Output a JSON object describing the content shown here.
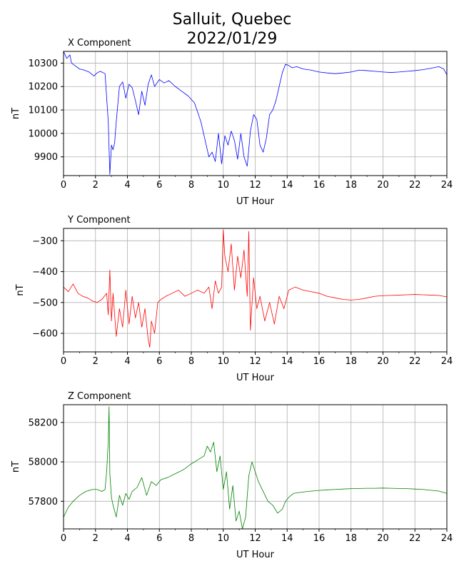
{
  "figure": {
    "title_line1": "Salluit, Quebec",
    "title_line2": "2022/01/29"
  },
  "chart_data": [
    {
      "type": "line",
      "title": "X Component",
      "xlabel": "UT Hour",
      "ylabel": "nT",
      "color": "#0000ff",
      "xlim": [
        0,
        24
      ],
      "ylim": [
        9820,
        10350
      ],
      "xticks": [
        "0",
        "2",
        "4",
        "6",
        "8",
        "10",
        "12",
        "14",
        "16",
        "18",
        "20",
        "22",
        "24"
      ],
      "yticks": [
        "9900",
        "10000",
        "10100",
        "10200",
        "10300"
      ],
      "grid": true,
      "x": [
        0,
        0.2,
        0.4,
        0.5,
        0.7,
        1,
        1.3,
        1.6,
        1.9,
        2.1,
        2.3,
        2.6,
        2.8,
        2.9,
        3,
        3.1,
        3.2,
        3.3,
        3.5,
        3.7,
        3.9,
        4.1,
        4.3,
        4.5,
        4.7,
        4.9,
        5.1,
        5.3,
        5.5,
        5.7,
        6,
        6.3,
        6.6,
        7,
        7.4,
        7.8,
        8.2,
        8.6,
        8.9,
        9.1,
        9.3,
        9.5,
        9.7,
        9.9,
        10.1,
        10.3,
        10.5,
        10.7,
        10.9,
        11.1,
        11.3,
        11.5,
        11.7,
        11.9,
        12.1,
        12.3,
        12.5,
        12.7,
        12.9,
        13.1,
        13.3,
        13.5,
        13.7,
        13.9,
        14.1,
        14.3,
        14.6,
        15,
        15.5,
        16,
        16.5,
        17,
        17.5,
        18,
        18.5,
        19,
        19.5,
        20,
        20.5,
        21,
        21.5,
        22,
        22.5,
        23,
        23.5,
        23.8,
        24
      ],
      "y": [
        10350,
        10320,
        10335,
        10300,
        10290,
        10275,
        10270,
        10262,
        10245,
        10258,
        10265,
        10255,
        10050,
        9825,
        9950,
        9930,
        9960,
        10050,
        10200,
        10220,
        10150,
        10210,
        10195,
        10140,
        10080,
        10180,
        10120,
        10210,
        10250,
        10200,
        10230,
        10215,
        10225,
        10200,
        10180,
        10160,
        10130,
        10050,
        9960,
        9900,
        9920,
        9880,
        10000,
        9870,
        9990,
        9950,
        10010,
        9970,
        9890,
        10000,
        9900,
        9860,
        10010,
        10080,
        10060,
        9950,
        9920,
        9980,
        10080,
        10100,
        10140,
        10200,
        10260,
        10295,
        10290,
        10280,
        10285,
        10275,
        10270,
        10262,
        10258,
        10255,
        10258,
        10262,
        10270,
        10268,
        10265,
        10262,
        10260,
        10262,
        10265,
        10268,
        10272,
        10278,
        10285,
        10275,
        10250
      ]
    },
    {
      "type": "line",
      "title": "Y Component",
      "xlabel": "UT Hour",
      "ylabel": "nT",
      "color": "#ff0000",
      "xlim": [
        0,
        24
      ],
      "ylim": [
        -660,
        -260
      ],
      "xticks": [
        "0",
        "2",
        "4",
        "6",
        "8",
        "10",
        "12",
        "14",
        "16",
        "18",
        "20",
        "22",
        "24"
      ],
      "yticks": [
        "−600",
        "−500",
        "−400",
        "−300"
      ],
      "grid": true,
      "x": [
        0,
        0.3,
        0.6,
        0.9,
        1.2,
        1.5,
        1.8,
        2.1,
        2.4,
        2.7,
        2.8,
        2.9,
        3,
        3.1,
        3.3,
        3.5,
        3.7,
        3.9,
        4.1,
        4.3,
        4.5,
        4.7,
        4.9,
        5.1,
        5.3,
        5.4,
        5.5,
        5.7,
        5.9,
        6.1,
        6.4,
        6.8,
        7.2,
        7.6,
        8,
        8.4,
        8.8,
        9.1,
        9.3,
        9.5,
        9.7,
        9.9,
        10,
        10.1,
        10.3,
        10.5,
        10.7,
        10.9,
        11.1,
        11.3,
        11.5,
        11.6,
        11.7,
        11.9,
        12.1,
        12.3,
        12.6,
        12.9,
        13.2,
        13.5,
        13.8,
        14.1,
        14.5,
        15,
        15.5,
        16,
        16.5,
        17,
        17.5,
        18,
        18.5,
        19,
        19.5,
        20,
        20.5,
        21,
        21.5,
        22,
        22.5,
        23,
        23.5,
        24
      ],
      "y": [
        -450,
        -465,
        -440,
        -470,
        -480,
        -485,
        -495,
        -500,
        -490,
        -470,
        -540,
        -395,
        -560,
        -470,
        -610,
        -520,
        -580,
        -460,
        -570,
        -480,
        -550,
        -500,
        -580,
        -520,
        -620,
        -645,
        -560,
        -600,
        -500,
        -490,
        -480,
        -470,
        -460,
        -480,
        -470,
        -460,
        -470,
        -450,
        -520,
        -430,
        -470,
        -450,
        -265,
        -350,
        -400,
        -310,
        -460,
        -350,
        -420,
        -330,
        -480,
        -270,
        -590,
        -420,
        -520,
        -480,
        -560,
        -500,
        -570,
        -480,
        -520,
        -460,
        -450,
        -460,
        -465,
        -470,
        -480,
        -485,
        -490,
        -492,
        -490,
        -485,
        -480,
        -478,
        -477,
        -476,
        -475,
        -474,
        -475,
        -476,
        -477,
        -482
      ]
    },
    {
      "type": "line",
      "title": "Z Component",
      "xlabel": "UT Hour",
      "ylabel": "nT",
      "color": "#008000",
      "xlim": [
        0,
        24
      ],
      "ylim": [
        57660,
        58290
      ],
      "xticks": [
        "0",
        "2",
        "4",
        "6",
        "8",
        "10",
        "12",
        "14",
        "16",
        "18",
        "20",
        "22",
        "24"
      ],
      "yticks": [
        "57800",
        "58000",
        "58200"
      ],
      "grid": true,
      "x": [
        0,
        0.3,
        0.6,
        1,
        1.4,
        1.8,
        2.1,
        2.4,
        2.6,
        2.7,
        2.8,
        2.85,
        2.9,
        3,
        3.1,
        3.3,
        3.5,
        3.7,
        3.9,
        4.1,
        4.3,
        4.6,
        4.9,
        5.2,
        5.5,
        5.8,
        6.1,
        6.5,
        7,
        7.5,
        8,
        8.4,
        8.8,
        9,
        9.2,
        9.4,
        9.6,
        9.8,
        10,
        10.2,
        10.4,
        10.6,
        10.8,
        11,
        11.2,
        11.4,
        11.6,
        11.8,
        12,
        12.2,
        12.5,
        12.8,
        13.1,
        13.4,
        13.7,
        13.9,
        14.1,
        14.4,
        14.8,
        15.3,
        16,
        16.5,
        17,
        17.5,
        18,
        18.5,
        19,
        19.5,
        20,
        20.5,
        21,
        21.5,
        22,
        22.5,
        23,
        23.5,
        24
      ],
      "y": [
        57720,
        57770,
        57800,
        57830,
        57850,
        57860,
        57860,
        57850,
        57860,
        57950,
        58100,
        58280,
        57940,
        57820,
        57780,
        57720,
        57830,
        57780,
        57840,
        57810,
        57850,
        57870,
        57920,
        57830,
        57900,
        57880,
        57910,
        57920,
        57940,
        57960,
        57990,
        58010,
        58030,
        58080,
        58050,
        58100,
        57950,
        58030,
        57860,
        57950,
        57760,
        57880,
        57700,
        57750,
        57660,
        57720,
        57930,
        58000,
        57950,
        57900,
        57850,
        57800,
        57780,
        57740,
        57760,
        57800,
        57820,
        57840,
        57845,
        57850,
        57855,
        57858,
        57860,
        57862,
        57864,
        57865,
        57866,
        57866,
        57867,
        57866,
        57865,
        57864,
        57862,
        57860,
        57856,
        57852,
        57840
      ]
    }
  ]
}
